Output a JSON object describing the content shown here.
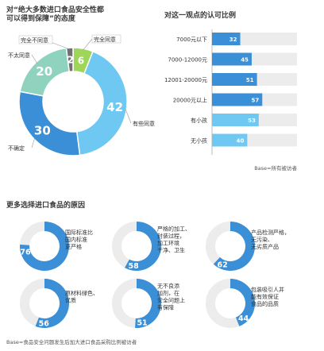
{
  "colors": {
    "dark_blue": "#3a8fd6",
    "light_blue": "#6ec8f2",
    "teal": "#8fd3bf",
    "green": "#9ed65a",
    "gray": "#ececec",
    "dark_gray": "#707070"
  },
  "chart_data": [
    {
      "type": "pie",
      "variant": "donut",
      "title_line1": "对“绝大多数进口食品安全性都",
      "title_line2": "可以得到保障”的态度",
      "slices": [
        {
          "label": "完全同意",
          "value": 6,
          "color": "#9ed65a"
        },
        {
          "label": "有些同意",
          "value": 42,
          "color": "#6ec8f2"
        },
        {
          "label": "不确定",
          "value": 30,
          "color": "#3a8fd6"
        },
        {
          "label": "不太同意",
          "value": 20,
          "color": "#8fd3bf"
        },
        {
          "label": "完全不同意",
          "value": 2,
          "color": "#707070"
        }
      ]
    },
    {
      "type": "bar",
      "orientation": "horizontal",
      "title": "对这一观点的认可比例",
      "categories": [
        "7000元以下",
        "7000-12000元",
        "12001-20000元",
        "20000元以上",
        "有小孩",
        "无小孩"
      ],
      "values": [
        32,
        45,
        51,
        57,
        53,
        40
      ],
      "bar_colors": [
        "#3a8fd6",
        "#3a8fd6",
        "#3a8fd6",
        "#3a8fd6",
        "#6ec8f2",
        "#6ec8f2"
      ],
      "xlim": [
        0,
        100
      ],
      "note": "Base=所有被访者"
    },
    {
      "type": "pie",
      "variant": "donut-grid",
      "title": "更多选择进口食品的原因",
      "items": [
        {
          "label_lines": [
            "国际标准比",
            "国内标准",
            "更严格"
          ],
          "value": 76
        },
        {
          "label_lines": [
            "严格的加工、",
            "封装过程，",
            "加工环境",
            "干净、卫生"
          ],
          "value": 58
        },
        {
          "label_lines": [
            "产品检测严格，",
            "无污染、",
            "无劣质产品"
          ],
          "value": 62
        },
        {
          "label_lines": [
            "原材料绿色、",
            "优质"
          ],
          "value": 56
        },
        {
          "label_lines": [
            "无不良添",
            "加剂，在",
            "安全问题上",
            "有保障"
          ],
          "value": 51
        },
        {
          "label_lines": [
            "包装吸引人并",
            "能有效保证",
            "食品的品质"
          ],
          "value": 44
        }
      ],
      "note": "Base=食品安全问题发生后加大进口食品采购比例被访者"
    }
  ]
}
